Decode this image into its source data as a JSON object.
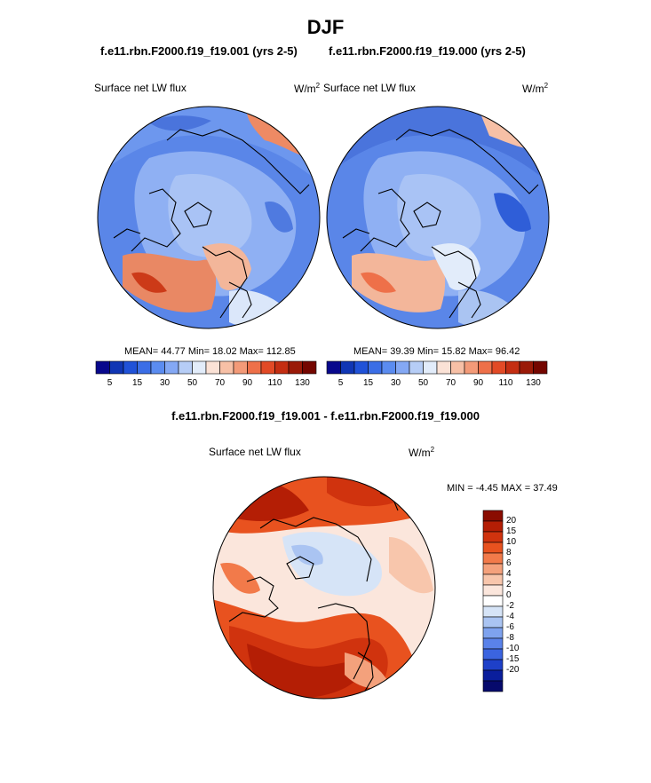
{
  "title": "DJF",
  "top_left": {
    "case_title": "f.e11.rbn.F2000.f19_f19.001 (yrs 2-5)",
    "variable": "Surface net LW flux",
    "units_base": "W/m",
    "units_exp": "2",
    "stats": "MEAN=  44.77  Min=  18.02  Max= 112.85"
  },
  "top_right": {
    "case_title": "f.e11.rbn.F2000.f19_f19.000 (yrs 2-5)",
    "variable": "Surface net LW flux",
    "units_base": "W/m",
    "units_exp": "2",
    "stats": "MEAN=  39.39  Min=  15.82  Max=  96.42"
  },
  "top_colorbar": {
    "colors": [
      "#08088c",
      "#1036b4",
      "#2052d8",
      "#3b6ee6",
      "#5b8cf0",
      "#84a8f4",
      "#b6cdf6",
      "#e2ecfa",
      "#fbe2d6",
      "#f7c0a6",
      "#f39a78",
      "#ee7049",
      "#e24a26",
      "#c42e12",
      "#9a1a08",
      "#740600"
    ],
    "ticks": [
      "5",
      "15",
      "30",
      "50",
      "70",
      "90",
      "110",
      "130"
    ]
  },
  "bottom": {
    "diff_title": "f.e11.rbn.F2000.f19_f19.001 - f.e11.rbn.F2000.f19_f19.000",
    "variable": "Surface net LW flux",
    "units_base": "W/m",
    "units_exp": "2",
    "minmax": "MIN =  -4.45 MAX =  37.49"
  },
  "diff_colorbar": {
    "colors": [
      "#8a0c00",
      "#b41e05",
      "#d0330e",
      "#e8521f",
      "#f27a4a",
      "#f4a17c",
      "#f8c6ac",
      "#fbe6dc",
      "#ffffff",
      "#d6e4f7",
      "#aac4f2",
      "#7ea2ee",
      "#5a82ea",
      "#3b64e0",
      "#1e40c8",
      "#0a1e9c",
      "#060a6c"
    ],
    "labels": [
      "20",
      "15",
      "10",
      "8",
      "6",
      "4",
      "2",
      "0",
      "-2",
      "-4",
      "-6",
      "-8",
      "-10",
      "-15",
      "-20"
    ]
  }
}
